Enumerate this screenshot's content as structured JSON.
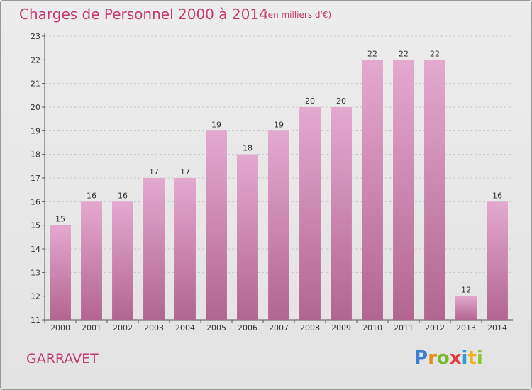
{
  "header": {
    "title": "Charges de Personnel 2000 à 2014",
    "subtitle": "(en milliers d'€)"
  },
  "footer": {
    "commune": "GARRAVET",
    "logo_text": "Proxiti",
    "logo_colors": [
      "#3a7fd0",
      "#e88b1e",
      "#7cb82f",
      "#e33a3a",
      "#2a9fd6",
      "#f2b01e",
      "#8cc63f"
    ]
  },
  "chart_data": {
    "type": "bar",
    "categories": [
      "2000",
      "2001",
      "2002",
      "2003",
      "2004",
      "2005",
      "2006",
      "2007",
      "2008",
      "2009",
      "2010",
      "2011",
      "2012",
      "2013",
      "2014"
    ],
    "values": [
      15,
      16,
      16,
      17,
      17,
      19,
      18,
      19,
      20,
      20,
      22,
      22,
      22,
      12,
      16
    ],
    "ylim": [
      11,
      23
    ],
    "yticks": [
      11,
      12,
      13,
      14,
      15,
      16,
      17,
      18,
      19,
      20,
      21,
      22,
      23
    ],
    "grid": true,
    "bar_color_top": "#e4a9cf",
    "bar_color_bottom": "#b2668f",
    "title": "Charges de Personnel 2000 à 2014",
    "xlabel": "",
    "ylabel": ""
  }
}
